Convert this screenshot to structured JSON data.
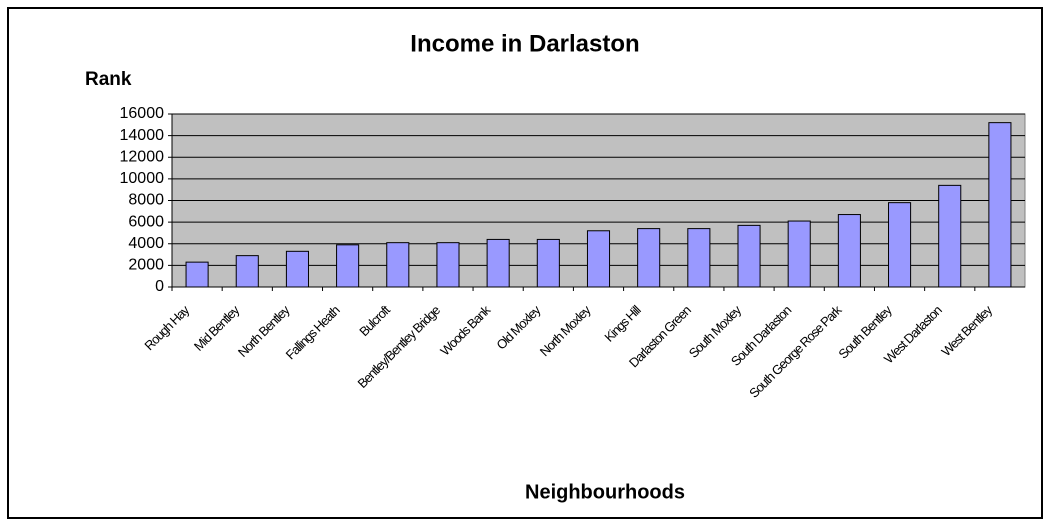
{
  "chart_data": {
    "type": "bar",
    "title": "Income in Darlaston",
    "y_label": "Rank",
    "x_label": "Neighbourhoods",
    "categories": [
      "Rough Hay",
      "Mid Bentley",
      "North Bentley",
      "Fallings Heath",
      "Bulcroft",
      "Bentley/Bentley Bridge",
      "Woods Bank",
      "Old Moxley",
      "North Moxley",
      "Kings Hill",
      "Darlaston Green",
      "South Moxley",
      "South Darlaston",
      "South George Rose Park",
      "South Bentley",
      "West Darlaston",
      "West Bentley"
    ],
    "values": [
      2300,
      2900,
      3300,
      3900,
      4100,
      4100,
      4400,
      4400,
      5200,
      5400,
      5400,
      5700,
      6100,
      6700,
      7800,
      9400,
      15200
    ],
    "color": "#9999ff",
    "ylim": [
      0,
      16000
    ],
    "yticks": [
      0,
      2000,
      4000,
      6000,
      8000,
      10000,
      12000,
      14000,
      16000
    ],
    "grid": true
  }
}
